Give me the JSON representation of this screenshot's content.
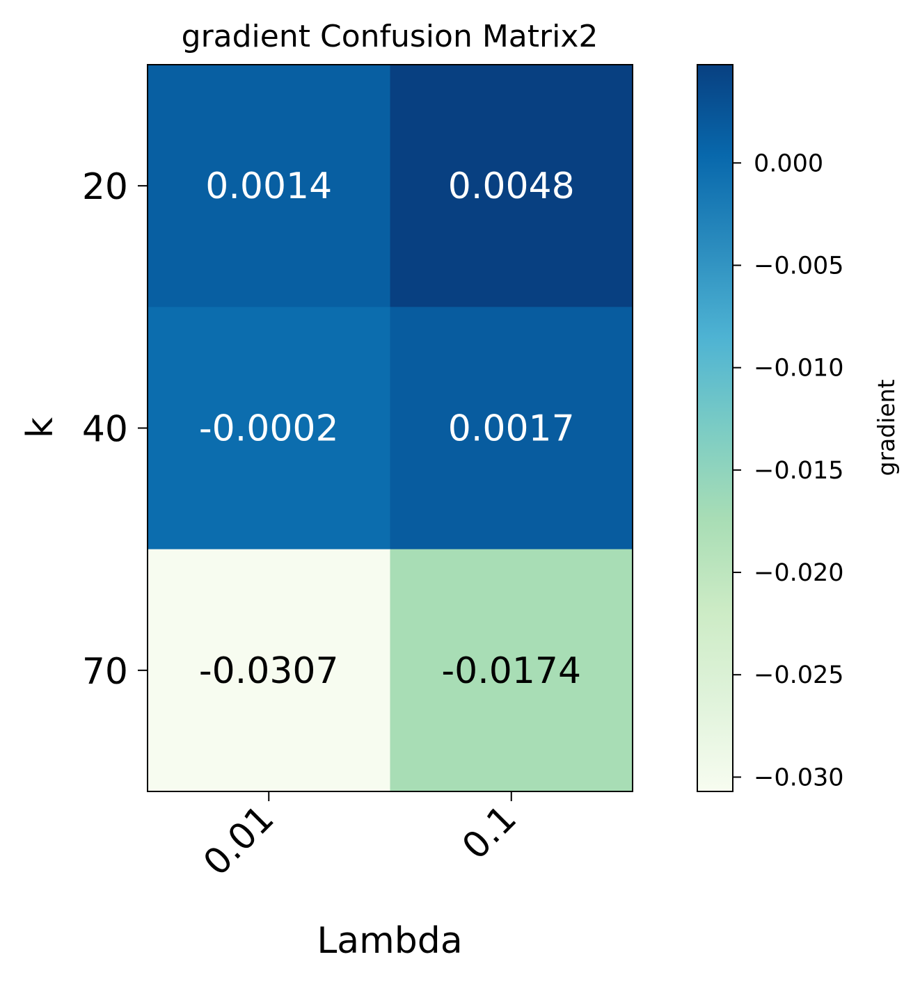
{
  "chart_data": {
    "type": "heatmap",
    "title": "gradient Confusion Matrix2",
    "xlabel": "Lambda",
    "ylabel": "k",
    "x_categories": [
      "0.01",
      "0.1"
    ],
    "y_categories": [
      "20",
      "40",
      "70"
    ],
    "values": [
      [
        0.0014,
        0.0048
      ],
      [
        -0.0002,
        0.0017
      ],
      [
        -0.0307,
        -0.0174
      ]
    ],
    "cell_labels": [
      [
        "0.0014",
        "0.0048"
      ],
      [
        "-0.0002",
        "0.0017"
      ],
      [
        "-0.0307",
        "-0.0174"
      ]
    ],
    "colormap": "GnBu",
    "colorbar": {
      "label": "gradient",
      "range": [
        -0.0307,
        0.0048
      ],
      "ticks": [
        0.0,
        -0.005,
        -0.01,
        -0.015,
        -0.02,
        -0.025,
        -0.03
      ],
      "tick_labels": [
        "0.000",
        "−0.005",
        "−0.010",
        "−0.015",
        "−0.020",
        "−0.025",
        "−0.030"
      ]
    },
    "colors": {
      "min": "#f7fcf0",
      "max": "#084081",
      "text_dark": "#000000",
      "text_light": "#ffffff"
    }
  }
}
